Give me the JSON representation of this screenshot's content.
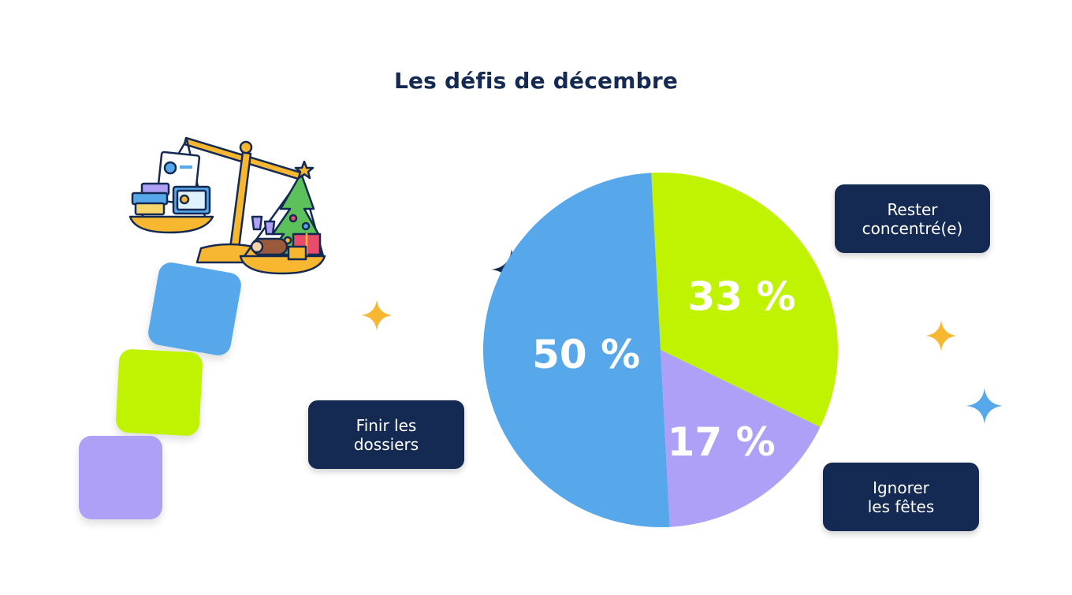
{
  "title": "Les défis de décembre",
  "chart_data": {
    "type": "pie",
    "slices": [
      {
        "name": "Rester\nconcentré(e)",
        "value": 33,
        "label": "33 %",
        "color": "#bff301"
      },
      {
        "name": "Ignorer\nles fêtes",
        "value": 17,
        "label": "17 %",
        "color": "#ae9ff7"
      },
      {
        "name": "Finir les\ndossiers",
        "value": 50,
        "label": "50 %",
        "color": "#56a8eb"
      }
    ]
  },
  "colors": {
    "navy": "#152a52",
    "gold": "#f7b731",
    "blue": "#56a8eb",
    "lime": "#bff301",
    "lavender": "#ae9ff7"
  },
  "decorations": {
    "illustration": "scale-balancing-work-and-christmas-icon",
    "sparkles": [
      "gold-sparkle-icon",
      "navy-sparkle-icon",
      "blue-sparkle-icon"
    ]
  }
}
